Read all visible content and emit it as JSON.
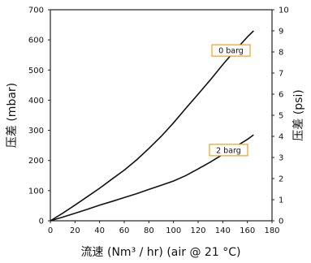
{
  "chart_data": {
    "type": "line",
    "xlabel": "流速 (Nm³ / hr) (air @ 21 °C)",
    "ylabel_left": "压差 (mbar)",
    "ylabel_right": "压差 (psi)",
    "xlim": [
      0,
      180
    ],
    "ylim_left": [
      0,
      700
    ],
    "ylim_right": [
      0,
      10
    ],
    "x_ticks": [
      0,
      20,
      40,
      60,
      80,
      100,
      120,
      140,
      160,
      180
    ],
    "y_ticks_left": [
      0,
      100,
      200,
      300,
      400,
      500,
      600,
      700
    ],
    "y_ticks_right": [
      0,
      1,
      2,
      3,
      4,
      5,
      6,
      7,
      8,
      9,
      10
    ],
    "grid": false,
    "series": [
      {
        "name": "0 barg",
        "x": [
          0,
          10,
          20,
          30,
          40,
          50,
          60,
          70,
          80,
          90,
          100,
          110,
          120,
          130,
          140,
          150,
          160,
          165
        ],
        "y": [
          0,
          25,
          52,
          80,
          108,
          138,
          168,
          202,
          240,
          280,
          325,
          373,
          420,
          468,
          518,
          565,
          610,
          630
        ]
      },
      {
        "name": "2 barg",
        "x": [
          0,
          10,
          20,
          30,
          40,
          50,
          60,
          70,
          80,
          90,
          100,
          110,
          120,
          130,
          140,
          150,
          160,
          165
        ],
        "y": [
          0,
          12,
          25,
          38,
          52,
          64,
          77,
          90,
          104,
          118,
          132,
          150,
          172,
          195,
          220,
          245,
          270,
          285
        ]
      }
    ]
  }
}
